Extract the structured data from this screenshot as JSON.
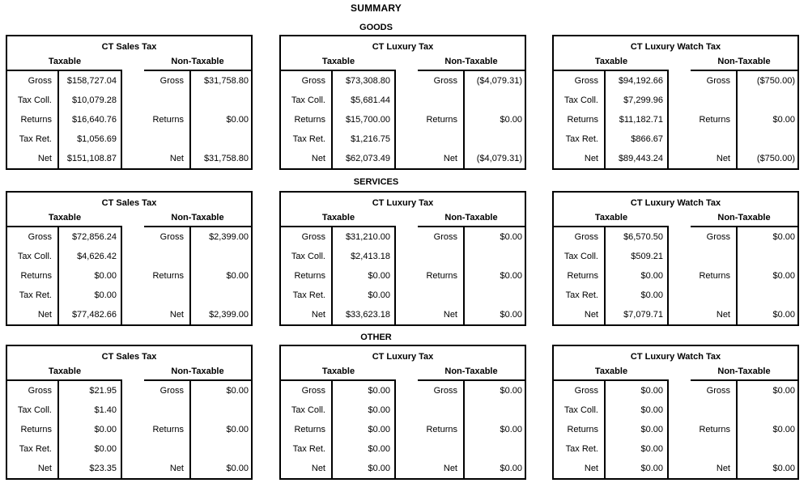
{
  "report": {
    "title": "SUMMARY"
  },
  "column_headers": {
    "taxable": "Taxable",
    "non_taxable": "Non-Taxable"
  },
  "row_labels": {
    "taxable": [
      "Gross",
      "Tax Coll.",
      "Returns",
      "Tax Ret.",
      "Net"
    ],
    "non_taxable": [
      "Gross",
      "Returns",
      "Net"
    ]
  },
  "sections": [
    {
      "label": "GOODS",
      "tables": [
        {
          "title": "CT Sales Tax",
          "taxable": [
            "$158,727.04",
            "$10,079.28",
            "$16,640.76",
            "$1,056.69",
            "$151,108.87"
          ],
          "non_taxable": [
            "$31,758.80",
            "$0.00",
            "$31,758.80"
          ]
        },
        {
          "title": "CT Luxury Tax",
          "taxable": [
            "$73,308.80",
            "$5,681.44",
            "$15,700.00",
            "$1,216.75",
            "$62,073.49"
          ],
          "non_taxable": [
            "($4,079.31)",
            "$0.00",
            "($4,079.31)"
          ]
        },
        {
          "title": "CT Luxury Watch Tax",
          "taxable": [
            "$94,192.66",
            "$7,299.96",
            "$11,182.71",
            "$866.67",
            "$89,443.24"
          ],
          "non_taxable": [
            "($750.00)",
            "$0.00",
            "($750.00)"
          ]
        }
      ]
    },
    {
      "label": "SERVICES",
      "tables": [
        {
          "title": "CT Sales Tax",
          "taxable": [
            "$72,856.24",
            "$4,626.42",
            "$0.00",
            "$0.00",
            "$77,482.66"
          ],
          "non_taxable": [
            "$2,399.00",
            "$0.00",
            "$2,399.00"
          ]
        },
        {
          "title": "CT Luxury Tax",
          "taxable": [
            "$31,210.00",
            "$2,413.18",
            "$0.00",
            "$0.00",
            "$33,623.18"
          ],
          "non_taxable": [
            "$0.00",
            "$0.00",
            "$0.00"
          ]
        },
        {
          "title": "CT Luxury Watch Tax",
          "taxable": [
            "$6,570.50",
            "$509.21",
            "$0.00",
            "$0.00",
            "$7,079.71"
          ],
          "non_taxable": [
            "$0.00",
            "$0.00",
            "$0.00"
          ]
        }
      ]
    },
    {
      "label": "OTHER",
      "tables": [
        {
          "title": "CT Sales Tax",
          "taxable": [
            "$21.95",
            "$1.40",
            "$0.00",
            "$0.00",
            "$23.35"
          ],
          "non_taxable": [
            "$0.00",
            "$0.00",
            "$0.00"
          ]
        },
        {
          "title": "CT Luxury Tax",
          "taxable": [
            "$0.00",
            "$0.00",
            "$0.00",
            "$0.00",
            "$0.00"
          ],
          "non_taxable": [
            "$0.00",
            "$0.00",
            "$0.00"
          ]
        },
        {
          "title": "CT Luxury Watch Tax",
          "taxable": [
            "$0.00",
            "$0.00",
            "$0.00",
            "$0.00",
            "$0.00"
          ],
          "non_taxable": [
            "$0.00",
            "$0.00",
            "$0.00"
          ]
        }
      ]
    }
  ]
}
